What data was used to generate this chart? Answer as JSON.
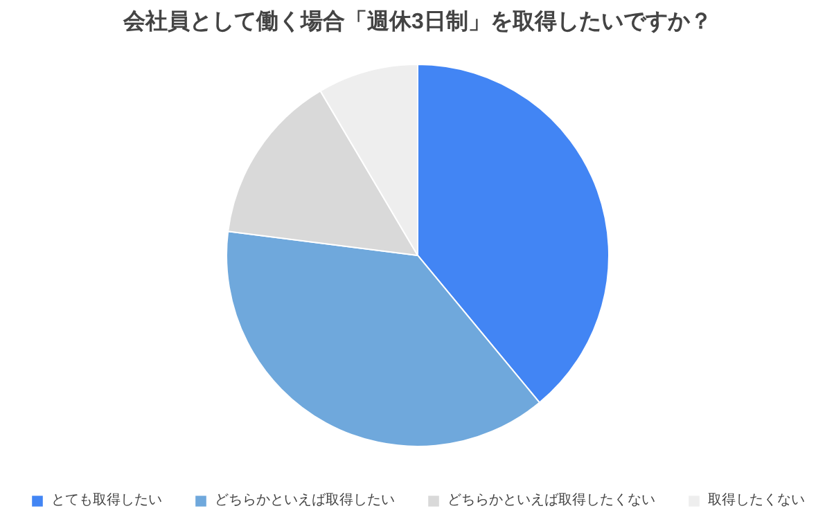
{
  "chart_data": {
    "type": "pie",
    "title": "会社員として働く場合「週休3日制」を取得したいですか？",
    "categories": [
      "とても取得したい",
      "どちらかといえば取得したい",
      "どちらかといえば取得したくない",
      "取得したくない"
    ],
    "values": [
      39,
      38,
      14.5,
      8.5
    ],
    "colors": [
      "#4285f4",
      "#6fa8dc",
      "#d9d9d9",
      "#eeeeee"
    ],
    "legend": "bottom"
  }
}
